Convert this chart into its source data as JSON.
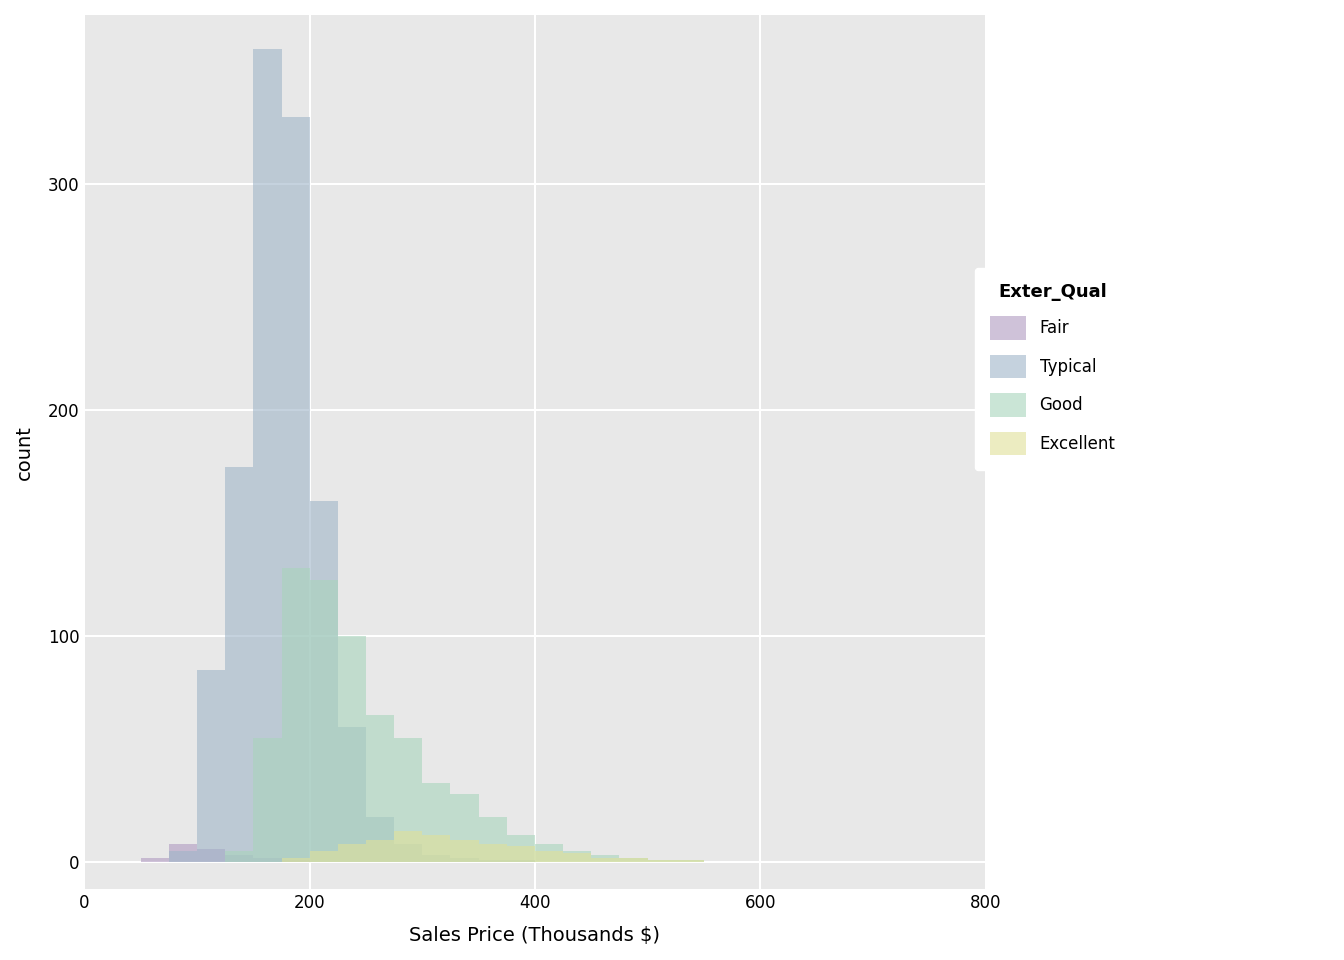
{
  "xlabel": "Sales Price (Thousands $)",
  "ylabel": "count",
  "legend_title": "Exter_Qual",
  "categories": [
    "Fair",
    "Typical",
    "Good",
    "Excellent"
  ],
  "colors": {
    "Fair": "#b09ac0",
    "Typical": "#9fb5c8",
    "Good": "#a8d4bc",
    "Excellent": "#e0e098"
  },
  "alpha": 0.6,
  "xlim": [
    0,
    800
  ],
  "ylim": [
    -12,
    375
  ],
  "bin_width": 25,
  "bins_start": 0,
  "bins_end": 800,
  "yticks": [
    0,
    100,
    200,
    300
  ],
  "xticks": [
    0,
    200,
    400,
    600,
    800
  ],
  "background_color": "#e8e8e8",
  "grid_color": "#ffffff",
  "typical_bins": [
    0,
    0,
    0,
    5,
    85,
    175,
    360,
    330,
    160,
    60,
    20,
    8,
    3,
    2,
    1,
    1,
    0,
    0,
    0,
    0,
    0,
    0,
    0,
    0,
    0,
    0,
    0,
    0,
    0,
    0,
    0,
    0
  ],
  "good_bins": [
    0,
    0,
    0,
    0,
    0,
    5,
    55,
    130,
    125,
    100,
    65,
    55,
    35,
    30,
    20,
    12,
    8,
    5,
    3,
    2,
    1,
    1,
    0,
    0,
    0,
    0,
    0,
    0,
    0,
    0,
    0,
    0
  ],
  "fair_bins": [
    0,
    0,
    2,
    8,
    6,
    3,
    2,
    1,
    0,
    0,
    0,
    0,
    0,
    0,
    0,
    0,
    0,
    0,
    0,
    0,
    0,
    0,
    0,
    0,
    0,
    0,
    0,
    0,
    0,
    0,
    0,
    0
  ],
  "excellent_bins": [
    0,
    0,
    0,
    0,
    0,
    0,
    0,
    2,
    5,
    8,
    10,
    14,
    12,
    10,
    8,
    7,
    5,
    4,
    2,
    2,
    1,
    1,
    0,
    0,
    0,
    0,
    0,
    0,
    0,
    0,
    0,
    0
  ]
}
